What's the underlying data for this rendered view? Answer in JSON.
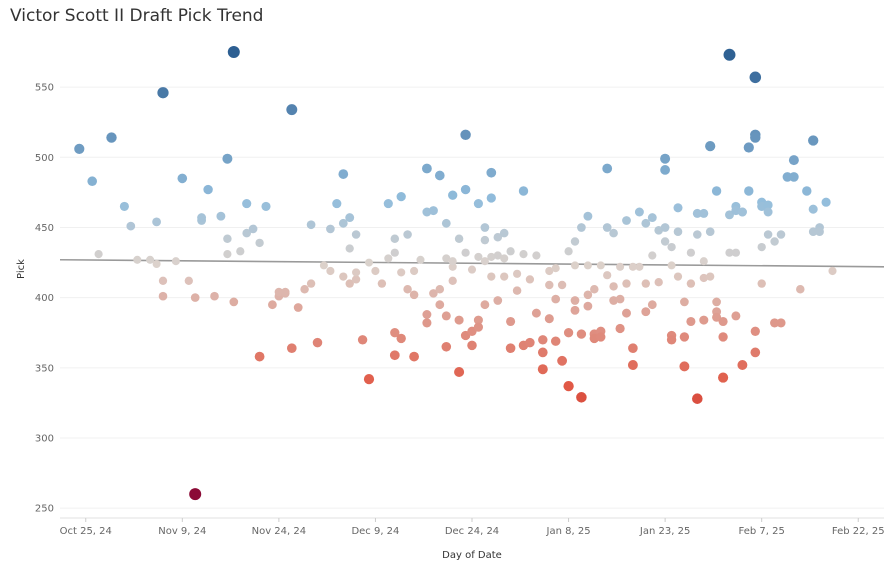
{
  "chart_data": {
    "type": "scatter",
    "title": "Victor Scott II Draft Pick Trend",
    "xlabel": "Day of Date",
    "ylabel": "Pick",
    "ylim": [
      243,
      585
    ],
    "yticks": [
      250,
      300,
      350,
      400,
      450,
      500,
      550
    ],
    "xlim_days": [
      -4,
      124
    ],
    "xticks": [
      {
        "label": "Oct 25, 24",
        "day": 0
      },
      {
        "label": "Nov 9, 24",
        "day": 15
      },
      {
        "label": "Nov 24, 24",
        "day": 30
      },
      {
        "label": "Dec 9, 24",
        "day": 45
      },
      {
        "label": "Dec 24, 24",
        "day": 60
      },
      {
        "label": "Jan 8, 25",
        "day": 75
      },
      {
        "label": "Jan 23, 25",
        "day": 90
      },
      {
        "label": "Feb 7, 25",
        "day": 105
      },
      {
        "label": "Feb 22, 25",
        "day": 120
      }
    ],
    "x_note": "x values are days since Oct 25, 2024",
    "trend_line": {
      "start": {
        "x": -4,
        "y": 427
      },
      "end": {
        "x": 124,
        "y": 422
      }
    },
    "color_scale": {
      "min_pick": 260,
      "mid_pick": 424,
      "max_pick": 575,
      "low_color": "#8b0a36",
      "low_mid_color": "#e15541",
      "mid_color": "#dcd2cc",
      "high_mid_color": "#92bddc",
      "high_color": "#2d5f92"
    },
    "points": [
      [
        -1,
        506
      ],
      [
        1,
        483
      ],
      [
        2,
        431
      ],
      [
        4,
        514
      ],
      [
        6,
        465
      ],
      [
        7,
        451
      ],
      [
        8,
        427
      ],
      [
        10,
        427
      ],
      [
        11,
        424
      ],
      [
        11,
        454
      ],
      [
        12,
        401
      ],
      [
        12,
        412
      ],
      [
        12,
        546
      ],
      [
        14,
        426
      ],
      [
        15,
        485
      ],
      [
        16,
        412
      ],
      [
        17,
        400
      ],
      [
        17,
        260
      ],
      [
        18,
        455
      ],
      [
        18,
        457
      ],
      [
        19,
        477
      ],
      [
        20,
        401
      ],
      [
        21,
        458
      ],
      [
        22,
        499
      ],
      [
        22,
        442
      ],
      [
        22,
        431
      ],
      [
        23,
        575
      ],
      [
        23,
        397
      ],
      [
        24,
        433
      ],
      [
        25,
        446
      ],
      [
        25,
        467
      ],
      [
        26,
        449
      ],
      [
        27,
        439
      ],
      [
        27,
        358
      ],
      [
        28,
        465
      ],
      [
        29,
        395
      ],
      [
        30,
        401
      ],
      [
        30,
        404
      ],
      [
        31,
        403
      ],
      [
        31,
        404
      ],
      [
        32,
        534
      ],
      [
        32,
        364
      ],
      [
        33,
        393
      ],
      [
        34,
        406
      ],
      [
        35,
        410
      ],
      [
        35,
        452
      ],
      [
        36,
        368
      ],
      [
        37,
        423
      ],
      [
        38,
        449
      ],
      [
        38,
        419
      ],
      [
        39,
        467
      ],
      [
        40,
        488
      ],
      [
        40,
        453
      ],
      [
        40,
        415
      ],
      [
        41,
        457
      ],
      [
        41,
        435
      ],
      [
        41,
        410
      ],
      [
        42,
        445
      ],
      [
        42,
        413
      ],
      [
        42,
        418
      ],
      [
        43,
        370
      ],
      [
        44,
        342
      ],
      [
        44,
        425
      ],
      [
        45,
        419
      ],
      [
        46,
        410
      ],
      [
        47,
        467
      ],
      [
        47,
        428
      ],
      [
        48,
        442
      ],
      [
        48,
        432
      ],
      [
        48,
        359
      ],
      [
        48,
        375
      ],
      [
        49,
        472
      ],
      [
        49,
        371
      ],
      [
        49,
        418
      ],
      [
        50,
        445
      ],
      [
        50,
        406
      ],
      [
        51,
        358
      ],
      [
        51,
        419
      ],
      [
        51,
        402
      ],
      [
        52,
        427
      ],
      [
        53,
        492
      ],
      [
        53,
        461
      ],
      [
        53,
        388
      ],
      [
        53,
        382
      ],
      [
        54,
        462
      ],
      [
        54,
        403
      ],
      [
        55,
        487
      ],
      [
        55,
        406
      ],
      [
        55,
        395
      ],
      [
        56,
        453
      ],
      [
        56,
        428
      ],
      [
        56,
        365
      ],
      [
        56,
        387
      ],
      [
        57,
        473
      ],
      [
        57,
        422
      ],
      [
        57,
        426
      ],
      [
        57,
        412
      ],
      [
        58,
        442
      ],
      [
        58,
        384
      ],
      [
        58,
        347
      ],
      [
        59,
        516
      ],
      [
        59,
        477
      ],
      [
        59,
        432
      ],
      [
        59,
        373
      ],
      [
        60,
        420
      ],
      [
        60,
        376
      ],
      [
        60,
        366
      ],
      [
        61,
        467
      ],
      [
        61,
        429
      ],
      [
        61,
        384
      ],
      [
        61,
        379
      ],
      [
        62,
        450
      ],
      [
        62,
        441
      ],
      [
        62,
        426
      ],
      [
        62,
        395
      ],
      [
        63,
        471
      ],
      [
        63,
        489
      ],
      [
        63,
        429
      ],
      [
        63,
        415
      ],
      [
        64,
        443
      ],
      [
        64,
        430
      ],
      [
        64,
        398
      ],
      [
        65,
        446
      ],
      [
        65,
        428
      ],
      [
        65,
        415
      ],
      [
        66,
        433
      ],
      [
        66,
        383
      ],
      [
        66,
        364
      ],
      [
        67,
        417
      ],
      [
        67,
        405
      ],
      [
        68,
        476
      ],
      [
        68,
        431
      ],
      [
        68,
        366
      ],
      [
        69,
        413
      ],
      [
        69,
        368
      ],
      [
        70,
        430
      ],
      [
        70,
        389
      ],
      [
        71,
        361
      ],
      [
        71,
        349
      ],
      [
        71,
        370
      ],
      [
        72,
        419
      ],
      [
        72,
        409
      ],
      [
        72,
        385
      ],
      [
        73,
        421
      ],
      [
        73,
        399
      ],
      [
        73,
        369
      ],
      [
        74,
        409
      ],
      [
        74,
        355
      ],
      [
        75,
        433
      ],
      [
        75,
        375
      ],
      [
        75,
        337
      ],
      [
        76,
        440
      ],
      [
        76,
        423
      ],
      [
        76,
        398
      ],
      [
        76,
        391
      ],
      [
        77,
        450
      ],
      [
        77,
        374
      ],
      [
        77,
        329
      ],
      [
        78,
        458
      ],
      [
        78,
        423
      ],
      [
        78,
        402
      ],
      [
        78,
        394
      ],
      [
        79,
        406
      ],
      [
        79,
        374
      ],
      [
        79,
        371
      ],
      [
        80,
        423
      ],
      [
        80,
        376
      ],
      [
        80,
        372
      ],
      [
        81,
        492
      ],
      [
        81,
        450
      ],
      [
        81,
        416
      ],
      [
        82,
        446
      ],
      [
        82,
        408
      ],
      [
        82,
        398
      ],
      [
        83,
        422
      ],
      [
        83,
        378
      ],
      [
        83,
        399
      ],
      [
        84,
        455
      ],
      [
        84,
        410
      ],
      [
        84,
        389
      ],
      [
        85,
        422
      ],
      [
        85,
        364
      ],
      [
        85,
        352
      ],
      [
        86,
        461
      ],
      [
        86,
        422
      ],
      [
        87,
        453
      ],
      [
        87,
        410
      ],
      [
        87,
        390
      ],
      [
        88,
        457
      ],
      [
        88,
        430
      ],
      [
        88,
        395
      ],
      [
        89,
        448
      ],
      [
        89,
        411
      ],
      [
        90,
        499
      ],
      [
        90,
        491
      ],
      [
        90,
        450
      ],
      [
        90,
        440
      ],
      [
        91,
        436
      ],
      [
        91,
        423
      ],
      [
        91,
        373
      ],
      [
        91,
        370
      ],
      [
        92,
        464
      ],
      [
        92,
        447
      ],
      [
        92,
        415
      ],
      [
        93,
        397
      ],
      [
        93,
        372
      ],
      [
        93,
        351
      ],
      [
        94,
        432
      ],
      [
        94,
        410
      ],
      [
        94,
        383
      ],
      [
        95,
        460
      ],
      [
        95,
        445
      ],
      [
        95,
        328
      ],
      [
        96,
        460
      ],
      [
        96,
        426
      ],
      [
        96,
        414
      ],
      [
        96,
        384
      ],
      [
        97,
        508
      ],
      [
        97,
        447
      ],
      [
        97,
        415
      ],
      [
        98,
        476
      ],
      [
        98,
        397
      ],
      [
        98,
        390
      ],
      [
        98,
        386
      ],
      [
        99,
        383
      ],
      [
        99,
        372
      ],
      [
        99,
        343
      ],
      [
        100,
        432
      ],
      [
        100,
        573
      ],
      [
        100,
        459
      ],
      [
        101,
        465
      ],
      [
        101,
        432
      ],
      [
        101,
        387
      ],
      [
        101,
        462
      ],
      [
        102,
        461
      ],
      [
        102,
        461
      ],
      [
        102,
        352
      ],
      [
        103,
        507
      ],
      [
        103,
        476
      ],
      [
        104,
        516
      ],
      [
        104,
        514
      ],
      [
        104,
        557
      ],
      [
        104,
        376
      ],
      [
        104,
        361
      ],
      [
        105,
        468
      ],
      [
        105,
        465
      ],
      [
        105,
        436
      ],
      [
        105,
        410
      ],
      [
        106,
        466
      ],
      [
        106,
        461
      ],
      [
        106,
        445
      ],
      [
        107,
        440
      ],
      [
        107,
        382
      ],
      [
        108,
        445
      ],
      [
        108,
        382
      ],
      [
        109,
        486
      ],
      [
        110,
        498
      ],
      [
        110,
        486
      ],
      [
        111,
        406
      ],
      [
        112,
        476
      ],
      [
        113,
        512
      ],
      [
        113,
        463
      ],
      [
        113,
        447
      ],
      [
        114,
        450
      ],
      [
        114,
        447
      ],
      [
        115,
        468
      ],
      [
        116,
        419
      ]
    ]
  }
}
